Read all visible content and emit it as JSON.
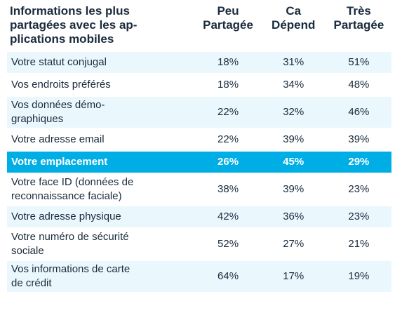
{
  "chart_data": {
    "type": "table",
    "columns": [
      "Informations les plus partagées avec les applications mobiles",
      "Peu Partagée",
      "Ca Dépend",
      "Très Partagée"
    ],
    "header": {
      "first_line1": "Informations les plus",
      "first_line2": "partagées avec les ap-",
      "first_line3": "plications mobiles",
      "col1_line1": "Peu",
      "col1_line2": "Partagée",
      "col2_line1": "Ca",
      "col2_line2": "Dépend",
      "col3_line1": "Très",
      "col3_line2": "Partagée"
    },
    "rows": [
      {
        "label_line1": "Votre statut conjugal",
        "label_line2": "",
        "peu": "18%",
        "depend": "31%",
        "tres": "51%",
        "style": "tint"
      },
      {
        "label_line1": "Vos endroits préférés",
        "label_line2": "",
        "peu": "18%",
        "depend": "34%",
        "tres": "48%",
        "style": "plain"
      },
      {
        "label_line1": "Vos données démo-",
        "label_line2": "graphiques",
        "peu": "22%",
        "depend": "32%",
        "tres": "46%",
        "style": "tint"
      },
      {
        "label_line1": "Votre adresse email",
        "label_line2": "",
        "peu": "22%",
        "depend": "39%",
        "tres": "39%",
        "style": "plain"
      },
      {
        "label_line1": "Votre emplacement",
        "label_line2": "",
        "peu": "26%",
        "depend": "45%",
        "tres": "29%",
        "style": "hl"
      },
      {
        "label_line1": "Votre face ID (données de",
        "label_line2": "reconnaissance faciale)",
        "peu": "38%",
        "depend": "39%",
        "tres": "23%",
        "style": "plain"
      },
      {
        "label_line1": "Votre adresse physique",
        "label_line2": "",
        "peu": "42%",
        "depend": "36%",
        "tres": "23%",
        "style": "tint"
      },
      {
        "label_line1": "Votre numéro de sécurité",
        "label_line2": "sociale",
        "peu": "52%",
        "depend": "27%",
        "tres": "21%",
        "style": "plain"
      },
      {
        "label_line1": "Vos informations de carte",
        "label_line2": "de crédit",
        "peu": "64%",
        "depend": "17%",
        "tres": "19%",
        "style": "tint"
      }
    ],
    "colors": {
      "tint": "#eaf7fd",
      "highlight": "#00aee6",
      "text": "#1a2b3c"
    }
  }
}
